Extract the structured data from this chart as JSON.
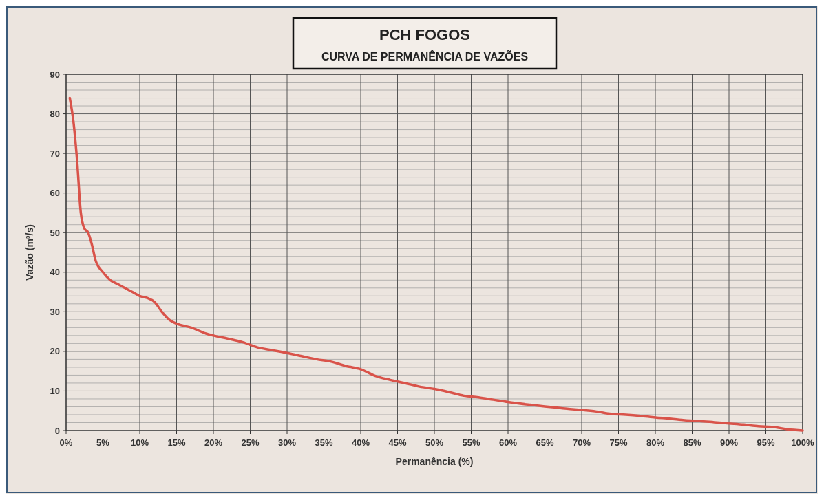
{
  "chart_data": {
    "type": "line",
    "title": "PCH FOGOS",
    "subtitle": "CURVA DE PERMANÊNCIA DE VAZÕES",
    "xlabel": "Permanência (%)",
    "ylabel": "Vazão (m³/s)",
    "xlim": [
      0,
      100
    ],
    "ylim": [
      0,
      90
    ],
    "xticks": [
      {
        "value": 0,
        "label": "0%"
      },
      {
        "value": 5,
        "label": "5%"
      },
      {
        "value": 10,
        "label": "10%"
      },
      {
        "value": 15,
        "label": "15%"
      },
      {
        "value": 20,
        "label": "20%"
      },
      {
        "value": 25,
        "label": "25%"
      },
      {
        "value": 30,
        "label": "30%"
      },
      {
        "value": 35,
        "label": "35%"
      },
      {
        "value": 40,
        "label": "40%"
      },
      {
        "value": 45,
        "label": "45%"
      },
      {
        "value": 50,
        "label": "50%"
      },
      {
        "value": 55,
        "label": "55%"
      },
      {
        "value": 60,
        "label": "60%"
      },
      {
        "value": 65,
        "label": "65%"
      },
      {
        "value": 70,
        "label": "70%"
      },
      {
        "value": 75,
        "label": "75%"
      },
      {
        "value": 80,
        "label": "80%"
      },
      {
        "value": 85,
        "label": "85%"
      },
      {
        "value": 90,
        "label": "90%"
      },
      {
        "value": 95,
        "label": "95%"
      },
      {
        "value": 100,
        "label": "100%"
      }
    ],
    "yticks": [
      0,
      {
        "value": 2,
        "label": null
      },
      {
        "value": 4,
        "label": null
      },
      {
        "value": 6,
        "label": null
      },
      {
        "value": 8,
        "label": null
      },
      10,
      {
        "value": 12,
        "label": null
      },
      {
        "value": 14,
        "label": null
      },
      {
        "value": 16,
        "label": null
      },
      {
        "value": 18,
        "label": null
      },
      20,
      {
        "value": 22,
        "label": null
      },
      {
        "value": 24,
        "label": null
      },
      {
        "value": 26,
        "label": null
      },
      {
        "value": 28,
        "label": null
      },
      30,
      {
        "value": 32,
        "label": null
      },
      {
        "value": 34,
        "label": null
      },
      {
        "value": 36,
        "label": null
      },
      {
        "value": 38,
        "label": null
      },
      40,
      {
        "value": 42,
        "label": null
      },
      {
        "value": 44,
        "label": null
      },
      {
        "value": 46,
        "label": null
      },
      {
        "value": 48,
        "label": null
      },
      50,
      {
        "value": 52,
        "label": null
      },
      {
        "value": 54,
        "label": null
      },
      {
        "value": 56,
        "label": null
      },
      {
        "value": 58,
        "label": null
      },
      60,
      {
        "value": 62,
        "label": null
      },
      {
        "value": 64,
        "label": null
      },
      {
        "value": 66,
        "label": null
      },
      {
        "value": 68,
        "label": null
      },
      70,
      {
        "value": 72,
        "label": null
      },
      {
        "value": 74,
        "label": null
      },
      {
        "value": 76,
        "label": null
      },
      {
        "value": 78,
        "label": null
      },
      80,
      {
        "value": 82,
        "label": null
      },
      {
        "value": 84,
        "label": null
      },
      {
        "value": 86,
        "label": null
      },
      {
        "value": 88,
        "label": null
      },
      90
    ],
    "grid": true,
    "marker": "none",
    "line_style": "solid",
    "series": [
      {
        "color": "#d9534a",
        "x": [
          0.5,
          1,
          1.5,
          2,
          2.5,
          3,
          3.5,
          4,
          5,
          6,
          7,
          8,
          9,
          10,
          11,
          12,
          13,
          14,
          15,
          17,
          19,
          20,
          22,
          24,
          26,
          28,
          30,
          32,
          34,
          36,
          38,
          40,
          42,
          44,
          46,
          48,
          50,
          52,
          54,
          56,
          58,
          60,
          63,
          66,
          68,
          70,
          72,
          74,
          76,
          78,
          80,
          82,
          84,
          86,
          88,
          90,
          92,
          94,
          96,
          98,
          100
        ],
        "values": [
          84,
          78,
          68,
          55,
          51,
          50,
          47,
          43,
          40,
          38,
          37,
          36,
          35,
          34,
          33.5,
          32.5,
          30,
          28,
          27,
          26,
          24.5,
          24,
          23.2,
          22.3,
          21,
          20.3,
          19.6,
          18.8,
          18,
          17.4,
          16.3,
          15.5,
          13.8,
          12.8,
          12,
          11.1,
          10.5,
          9.7,
          8.8,
          8.4,
          7.8,
          7.2,
          6.5,
          5.9,
          5.5,
          5.2,
          4.8,
          4.2,
          4,
          3.7,
          3.3,
          3,
          2.6,
          2.4,
          2.1,
          1.8,
          1.5,
          1.1,
          0.9,
          0.3,
          0
        ]
      }
    ]
  }
}
